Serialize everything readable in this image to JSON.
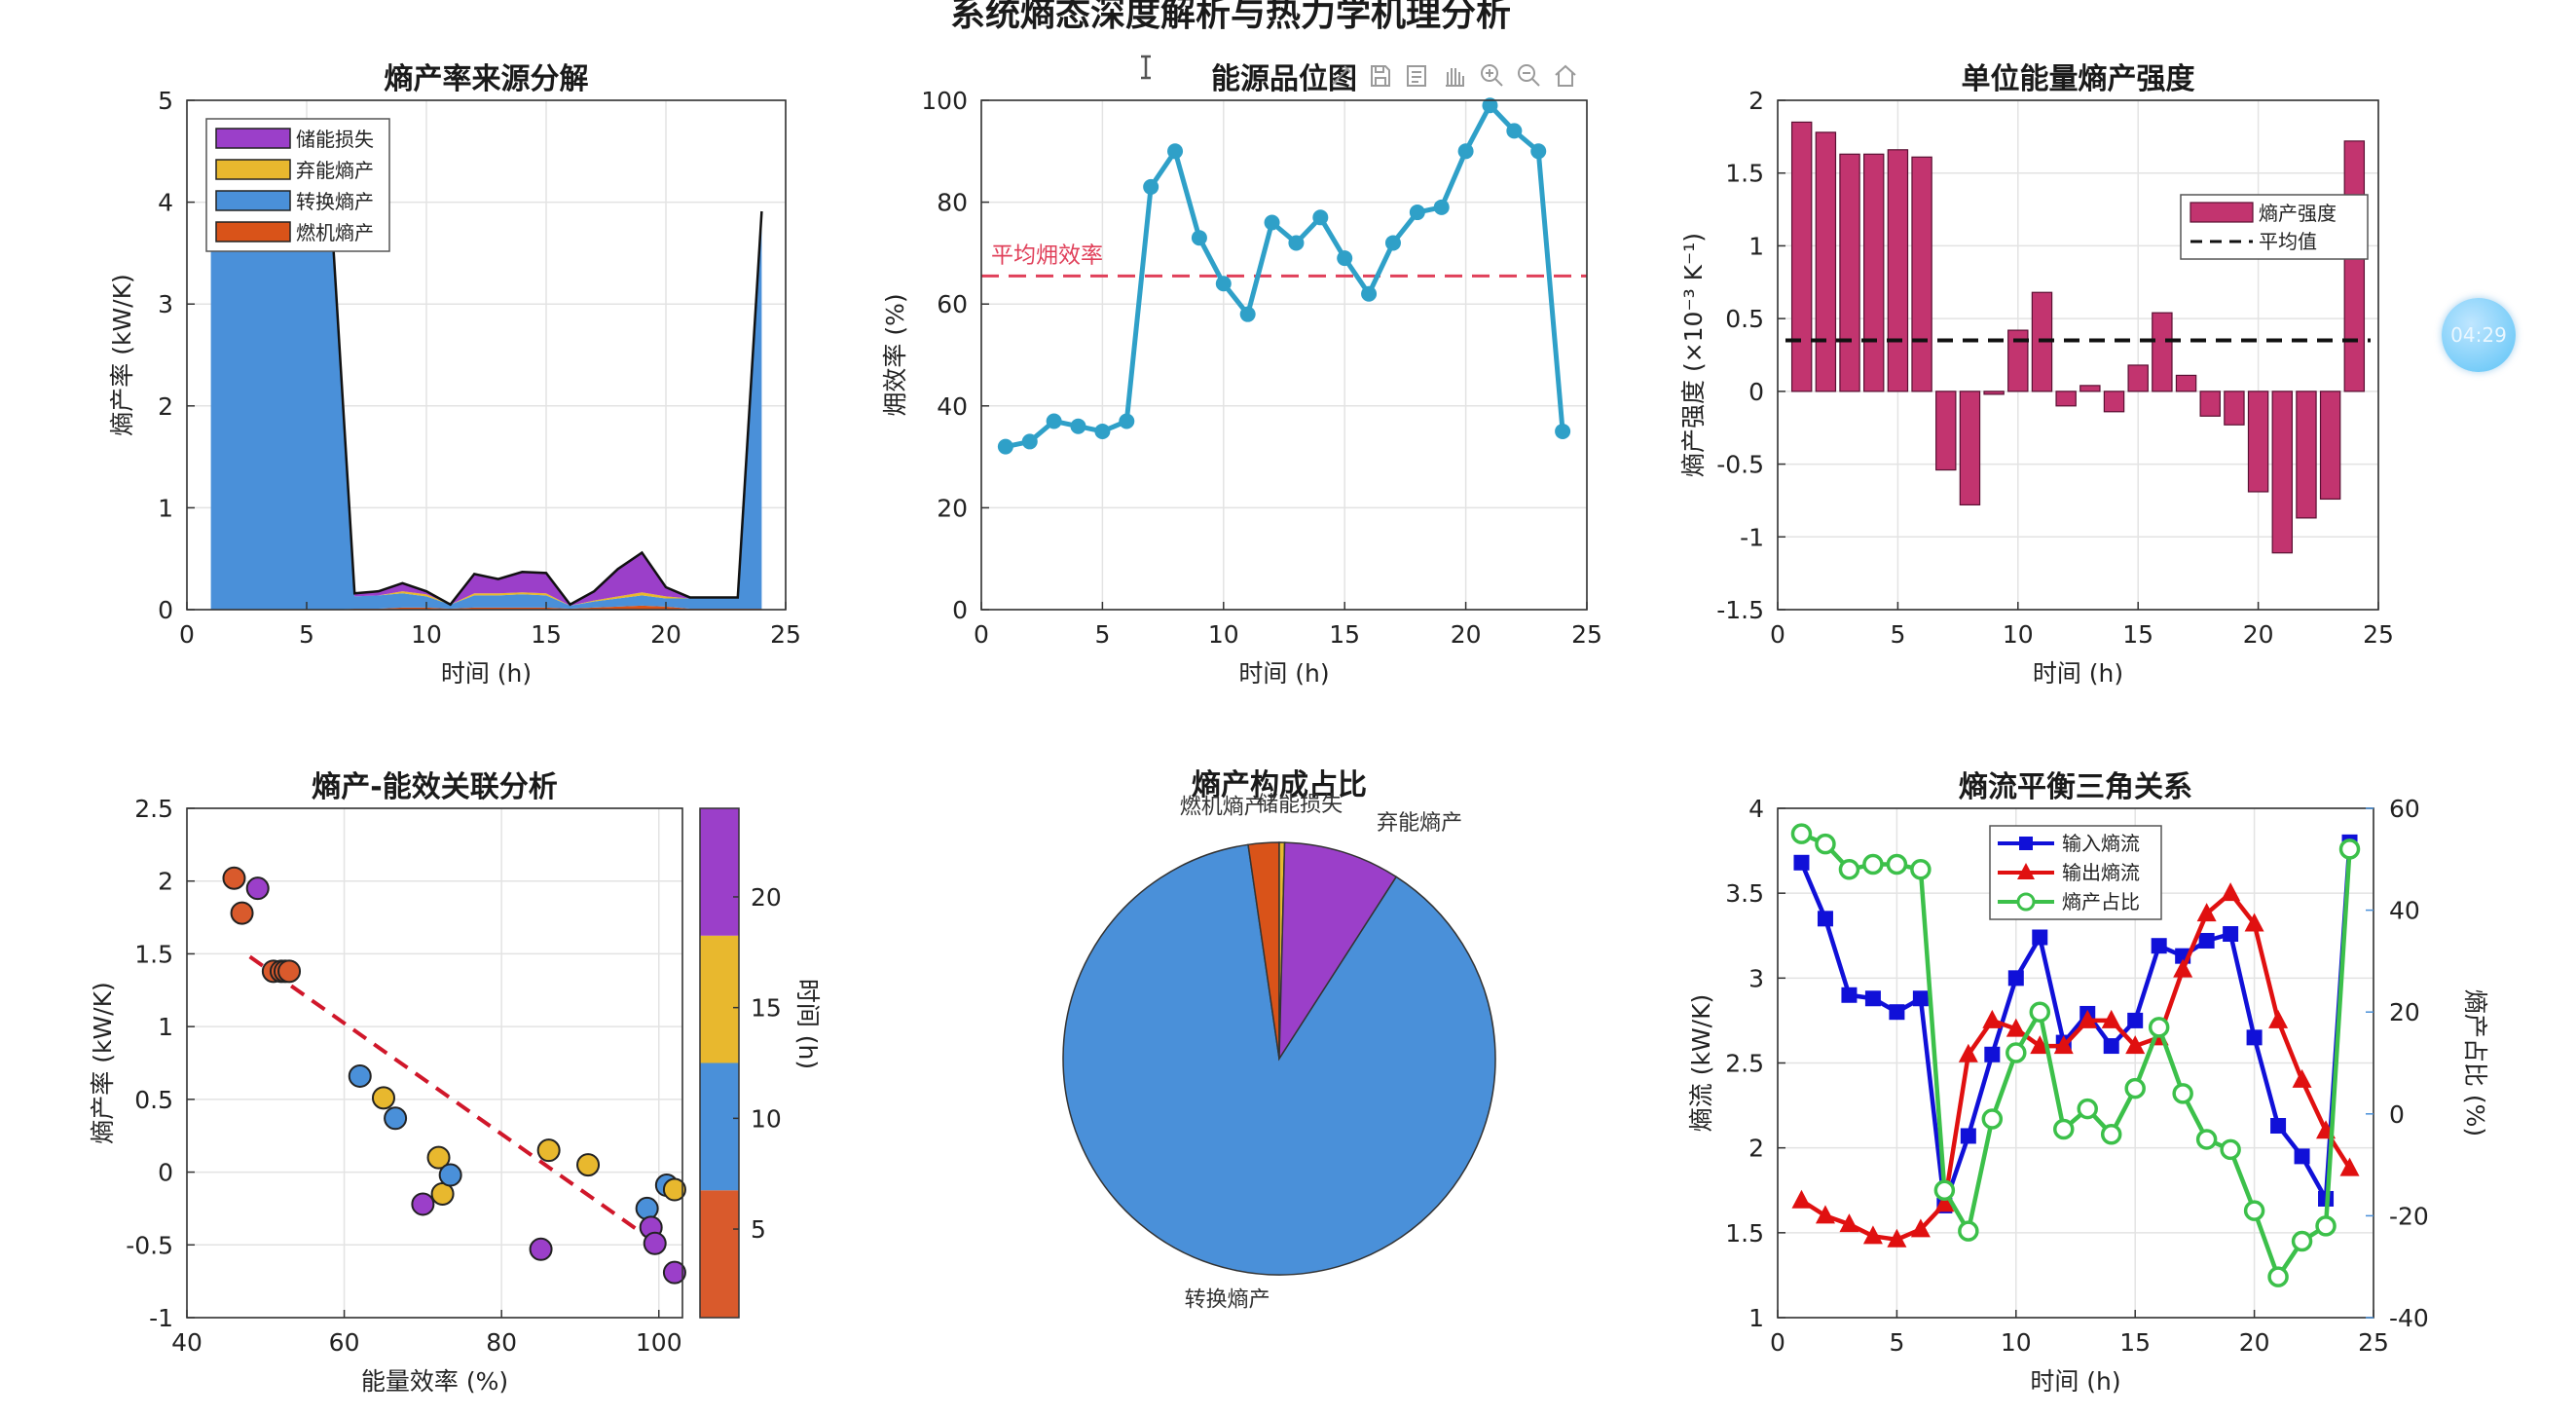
{
  "figure_title": "系统熵态深度解析与热力学机理分析",
  "timer": "04:29",
  "toolbar_icons": [
    "cursor-icon",
    "brush-icon",
    "save-icon",
    "copy-icon",
    "pan-icon",
    "zoom-in-icon",
    "zoom-out-icon",
    "home-icon"
  ],
  "chart_data": [
    {
      "id": "source-breakdown",
      "type": "area",
      "title": "熵产率来源分解",
      "xlabel": "时间 (h)",
      "ylabel": "熵产率 (kW/K)",
      "xlim": [
        0,
        25
      ],
      "ylim": [
        0,
        5
      ],
      "xticks": [
        0,
        5,
        10,
        15,
        20,
        25
      ],
      "yticks": [
        0,
        1,
        2,
        3,
        4,
        5
      ],
      "x": [
        1,
        2,
        3,
        4,
        5,
        6,
        7,
        8,
        9,
        10,
        11,
        12,
        13,
        14,
        15,
        16,
        17,
        18,
        19,
        20,
        21,
        22,
        23,
        24
      ],
      "series": [
        {
          "name": "燃机熵产",
          "color": "#d95319",
          "values": [
            0,
            0,
            0,
            0,
            0,
            0,
            0.01,
            0.01,
            0.02,
            0.02,
            0.01,
            0.02,
            0.02,
            0.02,
            0.02,
            0.01,
            0.02,
            0.03,
            0.04,
            0.03,
            0.01,
            0.01,
            0.01,
            0.01
          ]
        },
        {
          "name": "转换熵产",
          "color": "#4a90d9",
          "values": [
            4.8,
            4.8,
            4.8,
            4.8,
            4.8,
            4.0,
            0.12,
            0.13,
            0.14,
            0.11,
            0.04,
            0.12,
            0.12,
            0.13,
            0.12,
            0.03,
            0.06,
            0.08,
            0.1,
            0.08,
            0.1,
            0.11,
            0.11,
            3.9
          ]
        },
        {
          "name": "弃能熵产",
          "color": "#e8b82e",
          "values": [
            0,
            0,
            0,
            0,
            0,
            0,
            0,
            0,
            0.02,
            0.02,
            0,
            0.02,
            0.02,
            0.02,
            0.02,
            0,
            0.01,
            0.02,
            0.03,
            0.02,
            0,
            0,
            0,
            0
          ]
        },
        {
          "name": "储能损失",
          "color": "#9b3fc9",
          "values": [
            0,
            0,
            0,
            0,
            0,
            0,
            0.03,
            0.04,
            0.08,
            0.03,
            0,
            0.19,
            0.14,
            0.2,
            0.2,
            0.01,
            0.09,
            0.27,
            0.39,
            0.09,
            0.01,
            0,
            0,
            0
          ]
        }
      ]
    },
    {
      "id": "energy-grade",
      "type": "line",
      "title": "能源品位图",
      "xlabel": "时间 (h)",
      "ylabel": "㶲效率 (%)",
      "xlim": [
        0,
        25
      ],
      "ylim": [
        0,
        100
      ],
      "xticks": [
        0,
        5,
        10,
        15,
        20,
        25
      ],
      "yticks": [
        0,
        20,
        40,
        60,
        80,
        100
      ],
      "x": [
        1,
        2,
        3,
        4,
        5,
        6,
        7,
        8,
        9,
        10,
        11,
        12,
        13,
        14,
        15,
        16,
        17,
        18,
        19,
        20,
        21,
        22,
        23,
        24
      ],
      "values": [
        32,
        33,
        37,
        36,
        35,
        37,
        83,
        90,
        73,
        64,
        58,
        76,
        72,
        77,
        69,
        62,
        72,
        78,
        79,
        90,
        99,
        94,
        90,
        35
      ],
      "ref_line": {
        "label": "平均㶲效率",
        "value": 65.5,
        "color": "#e0405a"
      },
      "color": "#2fa0c8"
    },
    {
      "id": "unit-intensity",
      "type": "bar",
      "title": "单位能量熵产强度",
      "xlabel": "时间 (h)",
      "ylabel": "熵产强度 (×10⁻³ K⁻¹)",
      "xlim": [
        0,
        25
      ],
      "ylim": [
        -1.5,
        2
      ],
      "xticks": [
        0,
        5,
        10,
        15,
        20,
        25
      ],
      "yticks": [
        -1.5,
        -1,
        -0.5,
        0,
        0.5,
        1,
        1.5,
        2
      ],
      "x": [
        1,
        2,
        3,
        4,
        5,
        6,
        7,
        8,
        9,
        10,
        11,
        12,
        13,
        14,
        15,
        16,
        17,
        18,
        19,
        20,
        21,
        22,
        23,
        24
      ],
      "values": [
        1.85,
        1.78,
        1.63,
        1.63,
        1.66,
        1.61,
        -0.54,
        -0.78,
        -0.02,
        0.42,
        0.68,
        -0.1,
        0.04,
        -0.14,
        0.18,
        0.54,
        0.11,
        -0.17,
        -0.23,
        -0.69,
        -1.11,
        -0.87,
        -0.74,
        1.72
      ],
      "mean": 0.35,
      "legend": [
        "熵产强度",
        "平均值"
      ],
      "color": "#c2346f"
    },
    {
      "id": "scatter-correlation",
      "type": "scatter",
      "title": "熵产-能效关联分析",
      "xlabel": "能量效率 (%)",
      "ylabel": "熵产率 (kW/K)",
      "xlim": [
        40,
        103
      ],
      "ylim": [
        -1,
        2.5
      ],
      "xticks": [
        40,
        60,
        80,
        100
      ],
      "yticks": [
        -1,
        -0.5,
        0,
        0.5,
        1,
        1.5,
        2,
        2.5
      ],
      "points": [
        {
          "x": 46,
          "y": 2.02,
          "t": 1
        },
        {
          "x": 47,
          "y": 1.78,
          "t": 2
        },
        {
          "x": 49,
          "y": 1.95,
          "t": 24
        },
        {
          "x": 51,
          "y": 1.38,
          "t": 3
        },
        {
          "x": 52,
          "y": 1.38,
          "t": 4
        },
        {
          "x": 52.5,
          "y": 1.38,
          "t": 5
        },
        {
          "x": 53,
          "y": 1.38,
          "t": 6
        },
        {
          "x": 62,
          "y": 0.66,
          "t": 7
        },
        {
          "x": 65,
          "y": 0.51,
          "t": 16
        },
        {
          "x": 66.5,
          "y": 0.37,
          "t": 8
        },
        {
          "x": 70,
          "y": -0.22,
          "t": 21
        },
        {
          "x": 72,
          "y": 0.1,
          "t": 14
        },
        {
          "x": 72.5,
          "y": -0.15,
          "t": 13
        },
        {
          "x": 73.5,
          "y": -0.02,
          "t": 10
        },
        {
          "x": 86,
          "y": 0.15,
          "t": 15
        },
        {
          "x": 91,
          "y": 0.05,
          "t": 17
        },
        {
          "x": 85,
          "y": -0.53,
          "t": 22
        },
        {
          "x": 98.5,
          "y": -0.25,
          "t": 9
        },
        {
          "x": 99,
          "y": -0.38,
          "t": 23
        },
        {
          "x": 99.5,
          "y": -0.49,
          "t": 20
        },
        {
          "x": 101,
          "y": -0.09,
          "t": 11
        },
        {
          "x": 102,
          "y": -0.12,
          "t": 18
        },
        {
          "x": 102,
          "y": -0.69,
          "t": 19
        }
      ],
      "trend": {
        "x": [
          48,
          100
        ],
        "y": [
          1.48,
          -0.5
        ]
      },
      "colorbar": {
        "label": "时间 (h)",
        "ticks": [
          5,
          10,
          15,
          20
        ],
        "range": [
          1,
          24
        ],
        "colors": [
          "#d95a2c",
          "#4a90d9",
          "#e8b82e",
          "#9b3fc9"
        ]
      }
    },
    {
      "id": "composition-pie",
      "type": "pie",
      "title": "熵产构成占比",
      "slices": [
        {
          "label": "转换熵产",
          "value": 88.6,
          "color": "#4a90d9"
        },
        {
          "label": "燃机熵产",
          "value": 2.3,
          "color": "#d95319"
        },
        {
          "label": "储能损失",
          "value": 0.4,
          "color": "#e8b82e"
        },
        {
          "label": "弃能熵产",
          "value": 8.7,
          "color": "#9b3fc9"
        }
      ]
    },
    {
      "id": "flow-balance",
      "type": "line",
      "title": "熵流平衡三角关系",
      "xlabel": "时间 (h)",
      "ylabel": "熵流 (kW/K)",
      "ylabel_right": "熵产占比 (%)",
      "xlim": [
        0,
        25
      ],
      "ylim": [
        1,
        4
      ],
      "ylim_right": [
        -40,
        60
      ],
      "xticks": [
        0,
        5,
        10,
        15,
        20,
        25
      ],
      "yticks": [
        1,
        1.5,
        2,
        2.5,
        3,
        3.5,
        4
      ],
      "yticks_right": [
        -40,
        -20,
        0,
        20,
        40,
        60
      ],
      "x": [
        1,
        2,
        3,
        4,
        5,
        6,
        7,
        8,
        9,
        10,
        11,
        12,
        13,
        14,
        15,
        16,
        17,
        18,
        19,
        20,
        21,
        22,
        23,
        24
      ],
      "series": [
        {
          "name": "输入熵流",
          "color": "#1010d8",
          "marker": "square",
          "axis": "left",
          "values": [
            3.68,
            3.35,
            2.9,
            2.88,
            2.8,
            2.88,
            1.66,
            2.07,
            2.55,
            3.0,
            3.24,
            2.62,
            2.79,
            2.6,
            2.75,
            3.19,
            3.13,
            3.22,
            3.26,
            2.65,
            2.13,
            1.95,
            1.7,
            3.8
          ]
        },
        {
          "name": "输出熵流",
          "color": "#e01010",
          "marker": "triangle",
          "axis": "left",
          "values": [
            1.69,
            1.6,
            1.55,
            1.48,
            1.46,
            1.52,
            1.67,
            2.55,
            2.75,
            2.7,
            2.6,
            2.6,
            2.75,
            2.75,
            2.6,
            2.65,
            3.05,
            3.38,
            3.5,
            3.32,
            2.75,
            2.4,
            2.1,
            1.88
          ]
        },
        {
          "name": "熵产占比",
          "color": "#3cc04a",
          "marker": "circle",
          "axis": "right",
          "values": [
            55,
            53,
            48,
            49,
            49,
            48,
            -15,
            -23,
            -1,
            12,
            20,
            -3,
            1,
            -4,
            5,
            17,
            4,
            -5,
            -7,
            -19,
            -32,
            -25,
            -22,
            52
          ]
        }
      ]
    }
  ]
}
